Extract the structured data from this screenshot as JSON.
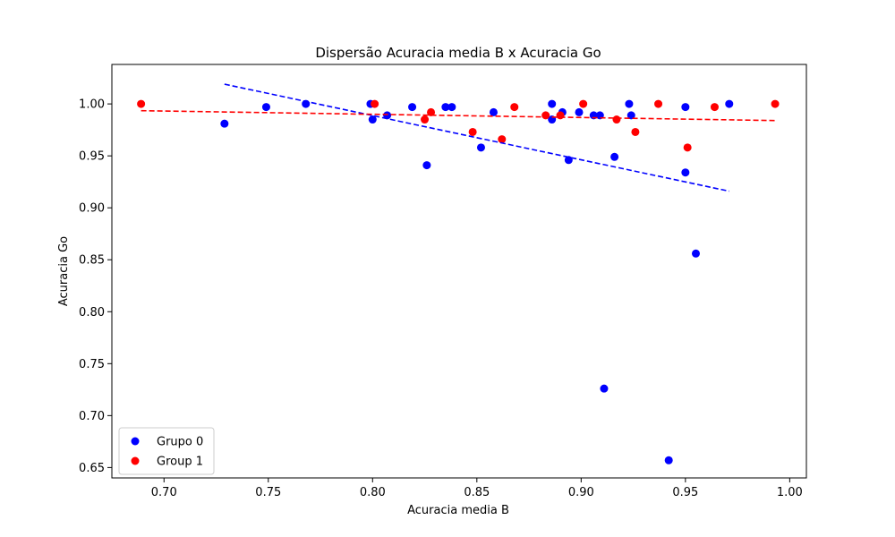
{
  "chart_data": {
    "type": "scatter",
    "title": "Dispersão Acuracia media B x Acuracia Go",
    "xlabel": "Acuracia media B",
    "ylabel": "Acuracia Go",
    "xlim": [
      0.675,
      1.008
    ],
    "ylim": [
      0.64,
      1.038
    ],
    "xticks": [
      0.7,
      0.75,
      0.8,
      0.85,
      0.9,
      0.95,
      1.0
    ],
    "xtick_labels": [
      "0.70",
      "0.75",
      "0.80",
      "0.85",
      "0.90",
      "0.95",
      "1.00"
    ],
    "yticks": [
      0.65,
      0.7,
      0.75,
      0.8,
      0.85,
      0.9,
      0.95,
      1.0
    ],
    "ytick_labels": [
      "0.65",
      "0.70",
      "0.75",
      "0.80",
      "0.85",
      "0.90",
      "0.95",
      "1.00"
    ],
    "grid": false,
    "legend_position": "lower-left",
    "series": [
      {
        "name": "Grupo 0",
        "color": "#0000ff",
        "points": [
          [
            0.729,
            0.981
          ],
          [
            0.749,
            0.997
          ],
          [
            0.768,
            1.0
          ],
          [
            0.799,
            1.0
          ],
          [
            0.8,
            0.985
          ],
          [
            0.807,
            0.989
          ],
          [
            0.819,
            0.997
          ],
          [
            0.826,
            0.941
          ],
          [
            0.835,
            0.997
          ],
          [
            0.838,
            0.997
          ],
          [
            0.852,
            0.958
          ],
          [
            0.858,
            0.992
          ],
          [
            0.886,
            1.0
          ],
          [
            0.886,
            0.985
          ],
          [
            0.891,
            0.992
          ],
          [
            0.894,
            0.946
          ],
          [
            0.899,
            0.992
          ],
          [
            0.906,
            0.989
          ],
          [
            0.909,
            0.989
          ],
          [
            0.911,
            0.726
          ],
          [
            0.916,
            0.949
          ],
          [
            0.923,
            1.0
          ],
          [
            0.924,
            0.989
          ],
          [
            0.942,
            0.657
          ],
          [
            0.95,
            0.997
          ],
          [
            0.95,
            0.934
          ],
          [
            0.955,
            0.856
          ],
          [
            0.971,
            1.0
          ]
        ],
        "trend": {
          "x": [
            0.729,
            0.971
          ],
          "y": [
            1.019,
            0.916
          ]
        }
      },
      {
        "name": "Group 1",
        "color": "#ff0000",
        "points": [
          [
            0.689,
            1.0
          ],
          [
            0.801,
            1.0
          ],
          [
            0.825,
            0.985
          ],
          [
            0.828,
            0.992
          ],
          [
            0.848,
            0.973
          ],
          [
            0.862,
            0.966
          ],
          [
            0.868,
            0.997
          ],
          [
            0.883,
            0.989
          ],
          [
            0.89,
            0.989
          ],
          [
            0.901,
            1.0
          ],
          [
            0.917,
            0.985
          ],
          [
            0.926,
            0.973
          ],
          [
            0.937,
            1.0
          ],
          [
            0.951,
            0.958
          ],
          [
            0.964,
            0.997
          ],
          [
            0.993,
            1.0
          ]
        ],
        "trend": {
          "x": [
            0.689,
            0.993
          ],
          "y": [
            0.9935,
            0.984
          ]
        }
      }
    ]
  }
}
